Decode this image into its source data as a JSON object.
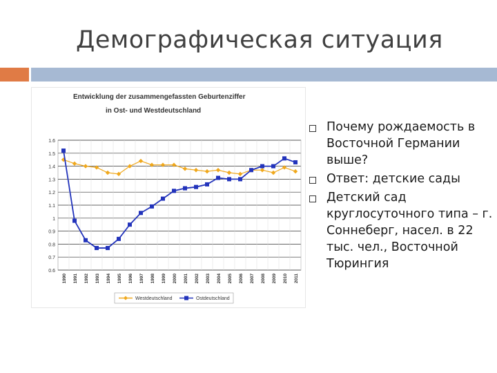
{
  "slide": {
    "title": "Демографическая ситуация",
    "bullets": [
      "Почему рождаемость в Восточной Германии выше?",
      "Ответ: детские сады",
      "Детский сад круглосуточного типа – г. Соннеберг, насел. в 22 тыс. чел., Восточной Тюрингия"
    ],
    "colors": {
      "accent_orange": "#e07b45",
      "accent_blue": "#a6b9d3"
    }
  },
  "chart_data": {
    "type": "line",
    "title": "Entwicklung der zusammengefassten Geburtenziffer",
    "subtitle": "in Ost- und Westdeutschland",
    "x": [
      "1990",
      "1991",
      "1992",
      "1993",
      "1994",
      "1995",
      "1996",
      "1997",
      "1998",
      "1999",
      "2000",
      "2001",
      "2002",
      "2003",
      "2004",
      "2005",
      "2006",
      "2007",
      "2008",
      "2009",
      "2010",
      "2011"
    ],
    "ylim": [
      0.6,
      1.6
    ],
    "yticks": [
      "1.6",
      "1.5",
      "1.4",
      "1.3",
      "1.2",
      "1.1",
      "1",
      "0.9",
      "0.8",
      "0.7",
      "0.6"
    ],
    "grid": true,
    "legend_position": "bottom",
    "series": [
      {
        "name": "Westdeutschland",
        "color": "#f0a81c",
        "marker": "diamond",
        "values": [
          1.45,
          1.42,
          1.4,
          1.39,
          1.35,
          1.34,
          1.4,
          1.44,
          1.41,
          1.41,
          1.41,
          1.38,
          1.37,
          1.36,
          1.37,
          1.35,
          1.34,
          1.37,
          1.37,
          1.35,
          1.39,
          1.36
        ]
      },
      {
        "name": "Ostdeutschland",
        "color": "#2233bb",
        "marker": "square",
        "values": [
          1.52,
          0.98,
          0.83,
          0.77,
          0.77,
          0.84,
          0.95,
          1.04,
          1.09,
          1.15,
          1.21,
          1.23,
          1.24,
          1.26,
          1.31,
          1.3,
          1.3,
          1.37,
          1.4,
          1.4,
          1.46,
          1.43
        ]
      }
    ]
  }
}
